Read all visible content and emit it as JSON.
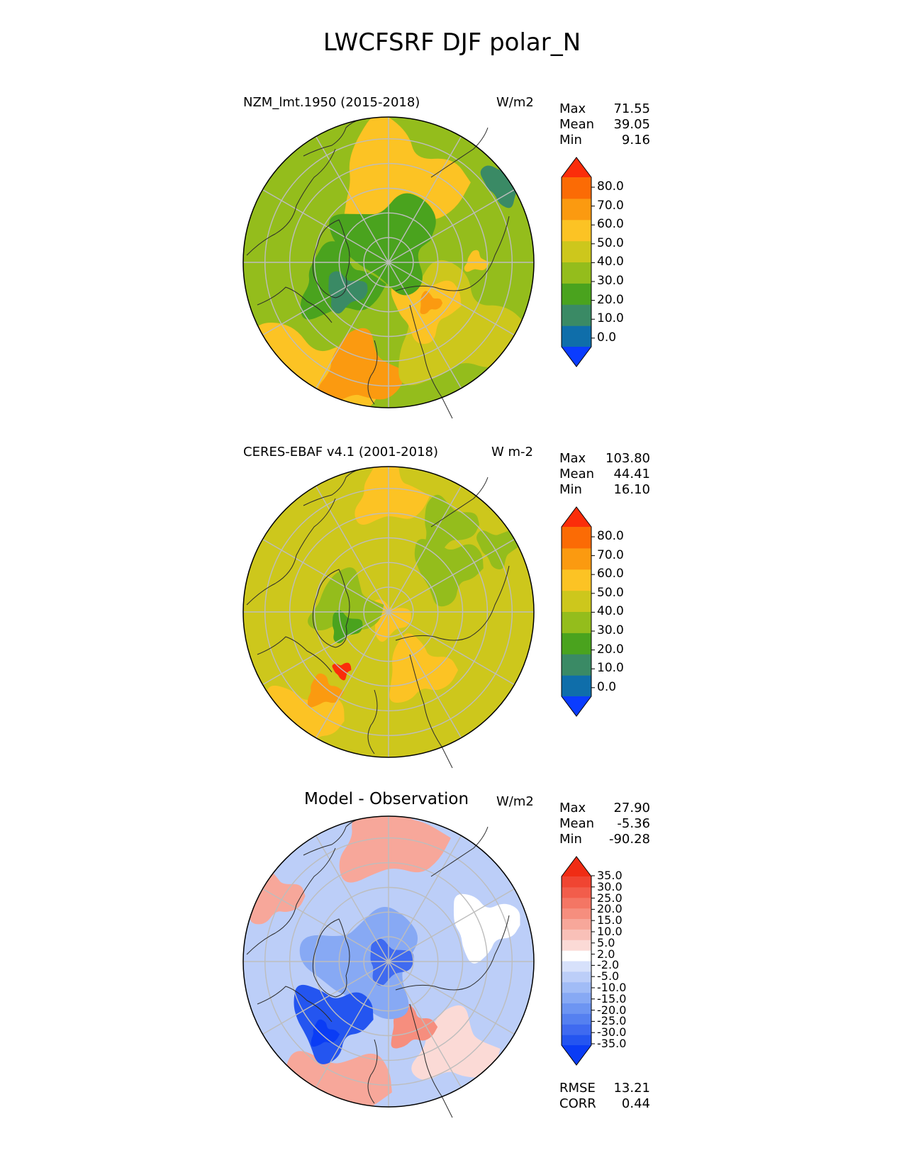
{
  "figure_title": "LWCFSRF DJF polar_N",
  "colors": {
    "abs_levels": [
      "#0a3cff",
      "#0f6eaa",
      "#3a8a65",
      "#4aa31e",
      "#94bd1c",
      "#cdc71c",
      "#fcc324",
      "#fb9a10",
      "#fb6b05",
      "#fb2d0a"
    ],
    "diff_levels": [
      "#0a3cf5",
      "#2455f0",
      "#3f6af0",
      "#5580f0",
      "#6d95f2",
      "#87a9f4",
      "#a1bcf6",
      "#bccef8",
      "#d7e1fb",
      "#ffffff",
      "#fbdad6",
      "#f9c0b8",
      "#f7a79a",
      "#f68e7e",
      "#f47664",
      "#f25d4b",
      "#f04532",
      "#f02c14"
    ],
    "coast": "#2b2b2b",
    "grid": "#bdbdbd"
  },
  "panels": [
    {
      "name": "model",
      "left_label": "NZM_lmt.1950 (2015-2018)",
      "units": "W/m2",
      "stats": [
        {
          "label": "Max",
          "value": "71.55"
        },
        {
          "label": "Mean",
          "value": "39.05"
        },
        {
          "label": "Min",
          "value": "9.16"
        }
      ],
      "colorbar_ticks": [
        "80.0",
        "70.0",
        "60.0",
        "50.0",
        "40.0",
        "30.0",
        "20.0",
        "10.0",
        "0.0"
      ]
    },
    {
      "name": "observation",
      "left_label": "CERES-EBAF v4.1 (2001-2018)",
      "units": "W m-2",
      "stats": [
        {
          "label": "Max",
          "value": "103.80"
        },
        {
          "label": "Mean",
          "value": "44.41"
        },
        {
          "label": "Min",
          "value": "16.10"
        }
      ],
      "colorbar_ticks": [
        "80.0",
        "70.0",
        "60.0",
        "50.0",
        "40.0",
        "30.0",
        "20.0",
        "10.0",
        "0.0"
      ]
    },
    {
      "name": "difference",
      "center_title": "Model - Observation",
      "units": "W/m2",
      "stats": [
        {
          "label": "Max",
          "value": "27.90"
        },
        {
          "label": "Mean",
          "value": "-5.36"
        },
        {
          "label": "Min",
          "value": "-90.28"
        }
      ],
      "colorbar_ticks": [
        "35.0",
        "30.0",
        "25.0",
        "20.0",
        "15.0",
        "10.0",
        "5.0",
        "2.0",
        "-2.0",
        "-5.0",
        "-10.0",
        "-15.0",
        "-20.0",
        "-25.0",
        "-30.0",
        "-35.0"
      ],
      "extra_stats": [
        {
          "label": "RMSE",
          "value": "13.21"
        },
        {
          "label": "CORR",
          "value": "0.44"
        }
      ]
    }
  ],
  "chart_data": [
    {
      "type": "heatmap",
      "projection": "north polar stereographic",
      "title": "NZM_lmt.1950 (2015-2018)",
      "units": "W/m2",
      "field": "LWCFSRF",
      "season": "DJF",
      "max": 71.55,
      "mean": 39.05,
      "min": 9.16,
      "levels": [
        0,
        10,
        20,
        30,
        40,
        50,
        60,
        70,
        80
      ],
      "extend": "both"
    },
    {
      "type": "heatmap",
      "projection": "north polar stereographic",
      "title": "CERES-EBAF v4.1 (2001-2018)",
      "units": "W m-2",
      "field": "LWCFSRF",
      "season": "DJF",
      "max": 103.8,
      "mean": 44.41,
      "min": 16.1,
      "levels": [
        0,
        10,
        20,
        30,
        40,
        50,
        60,
        70,
        80
      ],
      "extend": "both"
    },
    {
      "type": "heatmap",
      "projection": "north polar stereographic",
      "title": "Model - Observation",
      "units": "W/m2",
      "max": 27.9,
      "mean": -5.36,
      "min": -90.28,
      "rmse": 13.21,
      "corr": 0.44,
      "levels": [
        -35,
        -30,
        -25,
        -20,
        -15,
        -10,
        -5,
        -2,
        2,
        5,
        10,
        15,
        20,
        25,
        30,
        35
      ],
      "extend": "both"
    }
  ]
}
